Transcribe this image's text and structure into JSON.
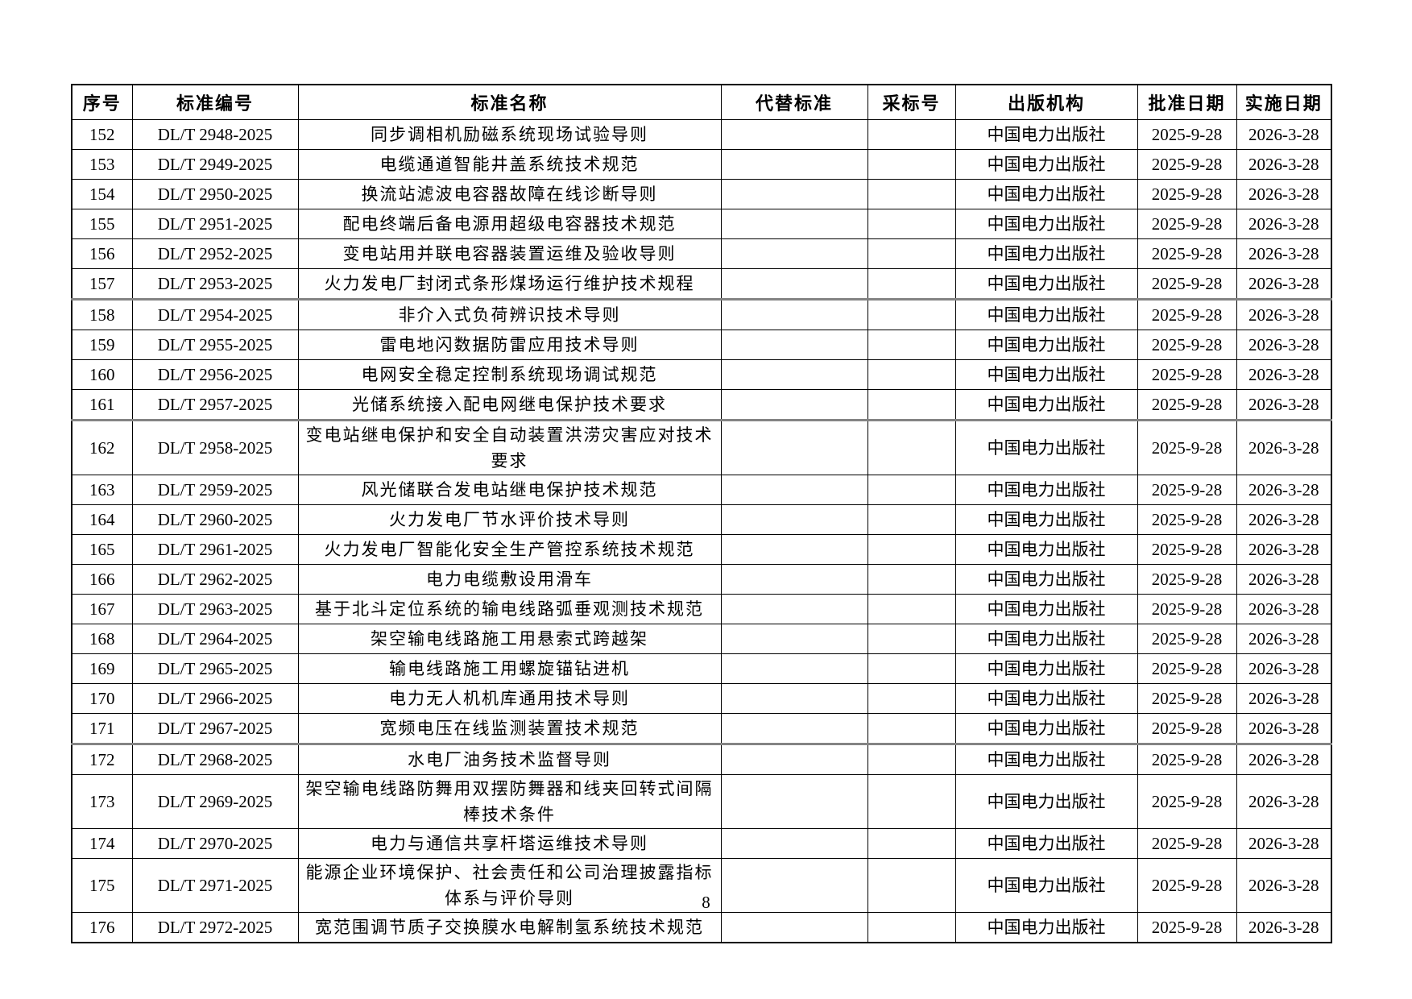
{
  "page": {
    "number": "8"
  },
  "table": {
    "headers": {
      "seq": "序号",
      "code": "标准编号",
      "name": "标准名称",
      "replaces": "代替标准",
      "adopted": "采标号",
      "publisher": "出版机构",
      "approved": "批准日期",
      "effective": "实施日期"
    },
    "rows": [
      {
        "seq": "152",
        "code": "DL/T 2948-2025",
        "name": "同步调相机励磁系统现场试验导则",
        "replaces": "",
        "adopted": "",
        "publisher": "中国电力出版社",
        "approved": "2025-9-28",
        "effective": "2026-3-28",
        "heavy_top": false
      },
      {
        "seq": "153",
        "code": "DL/T 2949-2025",
        "name": "电缆通道智能井盖系统技术规范",
        "replaces": "",
        "adopted": "",
        "publisher": "中国电力出版社",
        "approved": "2025-9-28",
        "effective": "2026-3-28",
        "heavy_top": false
      },
      {
        "seq": "154",
        "code": "DL/T 2950-2025",
        "name": "换流站滤波电容器故障在线诊断导则",
        "replaces": "",
        "adopted": "",
        "publisher": "中国电力出版社",
        "approved": "2025-9-28",
        "effective": "2026-3-28",
        "heavy_top": false
      },
      {
        "seq": "155",
        "code": "DL/T 2951-2025",
        "name": "配电终端后备电源用超级电容器技术规范",
        "replaces": "",
        "adopted": "",
        "publisher": "中国电力出版社",
        "approved": "2025-9-28",
        "effective": "2026-3-28",
        "heavy_top": false
      },
      {
        "seq": "156",
        "code": "DL/T 2952-2025",
        "name": "变电站用并联电容器装置运维及验收导则",
        "replaces": "",
        "adopted": "",
        "publisher": "中国电力出版社",
        "approved": "2025-9-28",
        "effective": "2026-3-28",
        "heavy_top": false
      },
      {
        "seq": "157",
        "code": "DL/T 2953-2025",
        "name": "火力发电厂封闭式条形煤场运行维护技术规程",
        "replaces": "",
        "adopted": "",
        "publisher": "中国电力出版社",
        "approved": "2025-9-28",
        "effective": "2026-3-28",
        "heavy_top": false
      },
      {
        "seq": "158",
        "code": "DL/T 2954-2025",
        "name": "非介入式负荷辨识技术导则",
        "replaces": "",
        "adopted": "",
        "publisher": "中国电力出版社",
        "approved": "2025-9-28",
        "effective": "2026-3-28",
        "heavy_top": true
      },
      {
        "seq": "159",
        "code": "DL/T 2955-2025",
        "name": "雷电地闪数据防雷应用技术导则",
        "replaces": "",
        "adopted": "",
        "publisher": "中国电力出版社",
        "approved": "2025-9-28",
        "effective": "2026-3-28",
        "heavy_top": false
      },
      {
        "seq": "160",
        "code": "DL/T 2956-2025",
        "name": "电网安全稳定控制系统现场调试规范",
        "replaces": "",
        "adopted": "",
        "publisher": "中国电力出版社",
        "approved": "2025-9-28",
        "effective": "2026-3-28",
        "heavy_top": false
      },
      {
        "seq": "161",
        "code": "DL/T 2957-2025",
        "name": "光储系统接入配电网继电保护技术要求",
        "replaces": "",
        "adopted": "",
        "publisher": "中国电力出版社",
        "approved": "2025-9-28",
        "effective": "2026-3-28",
        "heavy_top": false
      },
      {
        "seq": "162",
        "code": "DL/T 2958-2025",
        "name": "变电站继电保护和安全自动装置洪涝灾害应对技术要求",
        "replaces": "",
        "adopted": "",
        "publisher": "中国电力出版社",
        "approved": "2025-9-28",
        "effective": "2026-3-28",
        "heavy_top": true
      },
      {
        "seq": "163",
        "code": "DL/T 2959-2025",
        "name": "风光储联合发电站继电保护技术规范",
        "replaces": "",
        "adopted": "",
        "publisher": "中国电力出版社",
        "approved": "2025-9-28",
        "effective": "2026-3-28",
        "heavy_top": false
      },
      {
        "seq": "164",
        "code": "DL/T 2960-2025",
        "name": "火力发电厂节水评价技术导则",
        "replaces": "",
        "adopted": "",
        "publisher": "中国电力出版社",
        "approved": "2025-9-28",
        "effective": "2026-3-28",
        "heavy_top": false
      },
      {
        "seq": "165",
        "code": "DL/T 2961-2025",
        "name": "火力发电厂智能化安全生产管控系统技术规范",
        "replaces": "",
        "adopted": "",
        "publisher": "中国电力出版社",
        "approved": "2025-9-28",
        "effective": "2026-3-28",
        "heavy_top": false
      },
      {
        "seq": "166",
        "code": "DL/T 2962-2025",
        "name": "电力电缆敷设用滑车",
        "replaces": "",
        "adopted": "",
        "publisher": "中国电力出版社",
        "approved": "2025-9-28",
        "effective": "2026-3-28",
        "heavy_top": false
      },
      {
        "seq": "167",
        "code": "DL/T 2963-2025",
        "name": "基于北斗定位系统的输电线路弧垂观测技术规范",
        "replaces": "",
        "adopted": "",
        "publisher": "中国电力出版社",
        "approved": "2025-9-28",
        "effective": "2026-3-28",
        "heavy_top": false
      },
      {
        "seq": "168",
        "code": "DL/T 2964-2025",
        "name": "架空输电线路施工用悬索式跨越架",
        "replaces": "",
        "adopted": "",
        "publisher": "中国电力出版社",
        "approved": "2025-9-28",
        "effective": "2026-3-28",
        "heavy_top": false
      },
      {
        "seq": "169",
        "code": "DL/T 2965-2025",
        "name": "输电线路施工用螺旋锚钻进机",
        "replaces": "",
        "adopted": "",
        "publisher": "中国电力出版社",
        "approved": "2025-9-28",
        "effective": "2026-3-28",
        "heavy_top": false
      },
      {
        "seq": "170",
        "code": "DL/T 2966-2025",
        "name": "电力无人机机库通用技术导则",
        "replaces": "",
        "adopted": "",
        "publisher": "中国电力出版社",
        "approved": "2025-9-28",
        "effective": "2026-3-28",
        "heavy_top": false
      },
      {
        "seq": "171",
        "code": "DL/T 2967-2025",
        "name": "宽频电压在线监测装置技术规范",
        "replaces": "",
        "adopted": "",
        "publisher": "中国电力出版社",
        "approved": "2025-9-28",
        "effective": "2026-3-28",
        "heavy_top": false
      },
      {
        "seq": "172",
        "code": "DL/T 2968-2025",
        "name": "水电厂油务技术监督导则",
        "replaces": "",
        "adopted": "",
        "publisher": "中国电力出版社",
        "approved": "2025-9-28",
        "effective": "2026-3-28",
        "heavy_top": true
      },
      {
        "seq": "173",
        "code": "DL/T 2969-2025",
        "name": "架空输电线路防舞用双摆防舞器和线夹回转式间隔棒技术条件",
        "replaces": "",
        "adopted": "",
        "publisher": "中国电力出版社",
        "approved": "2025-9-28",
        "effective": "2026-3-28",
        "heavy_top": false
      },
      {
        "seq": "174",
        "code": "DL/T 2970-2025",
        "name": "电力与通信共享杆塔运维技术导则",
        "replaces": "",
        "adopted": "",
        "publisher": "中国电力出版社",
        "approved": "2025-9-28",
        "effective": "2026-3-28",
        "heavy_top": false
      },
      {
        "seq": "175",
        "code": "DL/T 2971-2025",
        "name": "能源企业环境保护、社会责任和公司治理披露指标体系与评价导则",
        "replaces": "",
        "adopted": "",
        "publisher": "中国电力出版社",
        "approved": "2025-9-28",
        "effective": "2026-3-28",
        "heavy_top": false
      },
      {
        "seq": "176",
        "code": "DL/T 2972-2025",
        "name": "宽范围调节质子交换膜水电解制氢系统技术规范",
        "replaces": "",
        "adopted": "",
        "publisher": "中国电力出版社",
        "approved": "2025-9-28",
        "effective": "2026-3-28",
        "heavy_top": false
      }
    ]
  }
}
